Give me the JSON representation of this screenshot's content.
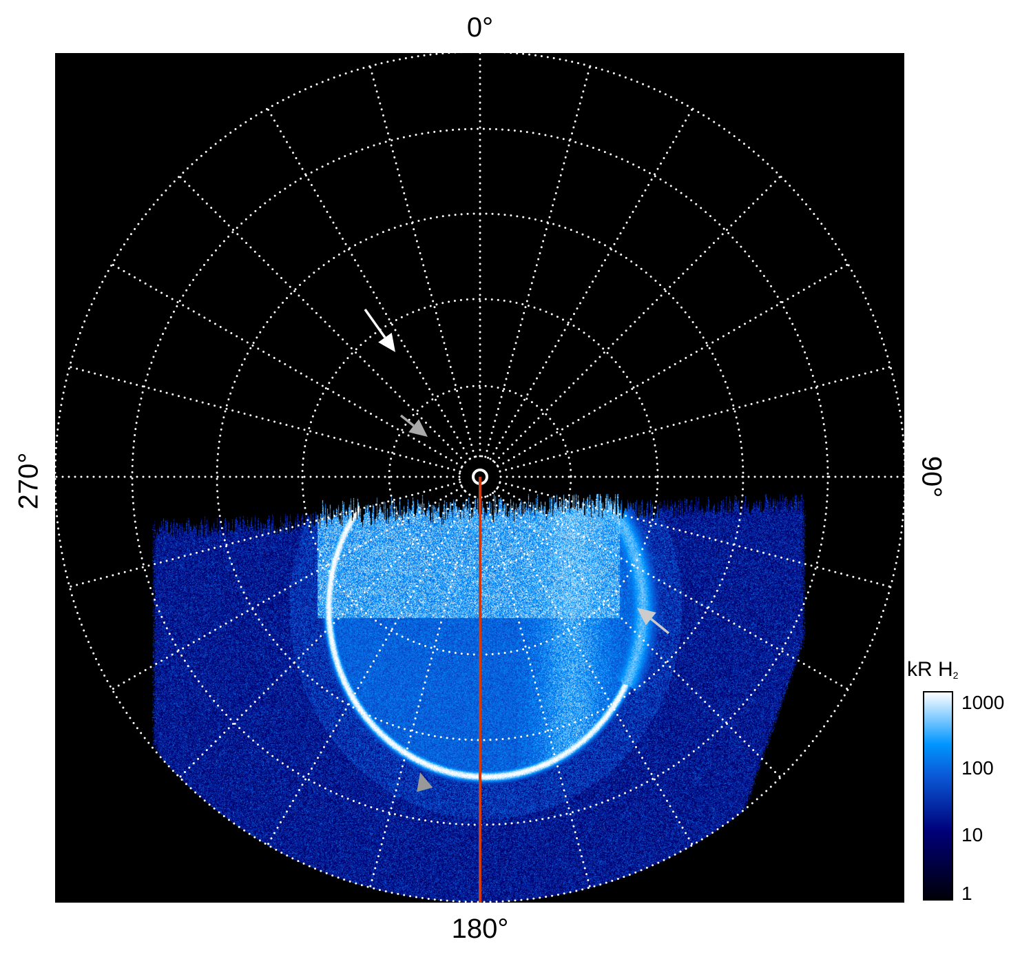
{
  "axis_labels": {
    "top": "0°",
    "right": "90°",
    "bottom": "180°",
    "left": "270°"
  },
  "colorbar": {
    "title": "kR H",
    "title_subscript": "2",
    "ticks": [
      "1000",
      "100",
      "10",
      "1"
    ],
    "scale": "log",
    "range": [
      1,
      1000
    ],
    "colors": [
      "#000008",
      "#00007a",
      "#0a5ad8",
      "#0096ff",
      "#ffffff"
    ]
  },
  "grid": {
    "style": "dotted",
    "color": "#ffffff",
    "meridian_step_deg": 15,
    "circles": 5
  },
  "meridian_line_color": "#d03a10",
  "arrows": [
    {
      "name": "white-arrow",
      "color": "#ffffff"
    },
    {
      "name": "gray-arrow-upper",
      "color": "#aaaaaa"
    },
    {
      "name": "gray-arrow-right",
      "color": "#cccccc"
    },
    {
      "name": "gray-arrow-lower",
      "color": "#999999"
    }
  ]
}
